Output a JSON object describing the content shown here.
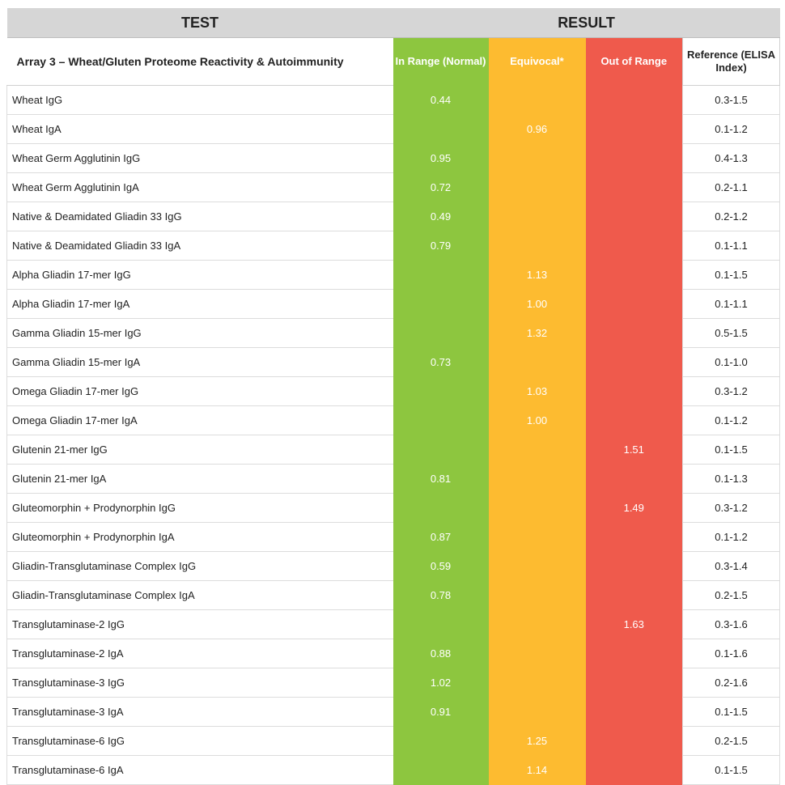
{
  "header": {
    "test": "TEST",
    "result": "RESULT"
  },
  "subheader": {
    "title": "Array 3 – Wheat/Gluten Proteome Reactivity & Autoimmunity",
    "in_range": "In Range (Normal)",
    "equivocal": "Equivocal*",
    "out_of_range": "Out of Range",
    "reference": "Reference (ELISA Index)"
  },
  "colors": {
    "in_range": "#8dc63f",
    "equivocal": "#fdbb30",
    "out_of_range": "#ef5a4c",
    "header_bg": "#d6d6d6"
  },
  "rows": [
    {
      "name": "Wheat IgG",
      "in": "0.44",
      "eq": "",
      "out": "",
      "ref": "0.3-1.5"
    },
    {
      "name": "Wheat IgA",
      "in": "",
      "eq": "0.96",
      "out": "",
      "ref": "0.1-1.2"
    },
    {
      "name": "Wheat Germ Agglutinin IgG",
      "in": "0.95",
      "eq": "",
      "out": "",
      "ref": "0.4-1.3"
    },
    {
      "name": "Wheat Germ Agglutinin IgA",
      "in": "0.72",
      "eq": "",
      "out": "",
      "ref": "0.2-1.1"
    },
    {
      "name": "Native & Deamidated Gliadin 33 IgG",
      "in": "0.49",
      "eq": "",
      "out": "",
      "ref": "0.2-1.2"
    },
    {
      "name": "Native & Deamidated Gliadin 33 IgA",
      "in": "0.79",
      "eq": "",
      "out": "",
      "ref": "0.1-1.1"
    },
    {
      "name": "Alpha Gliadin 17-mer IgG",
      "in": "",
      "eq": "1.13",
      "out": "",
      "ref": "0.1-1.5"
    },
    {
      "name": "Alpha Gliadin 17-mer IgA",
      "in": "",
      "eq": "1.00",
      "out": "",
      "ref": "0.1-1.1"
    },
    {
      "name": "Gamma Gliadin 15-mer IgG",
      "in": "",
      "eq": "1.32",
      "out": "",
      "ref": "0.5-1.5"
    },
    {
      "name": "Gamma Gliadin 15-mer IgA",
      "in": "0.73",
      "eq": "",
      "out": "",
      "ref": "0.1-1.0"
    },
    {
      "name": "Omega Gliadin 17-mer IgG",
      "in": "",
      "eq": "1.03",
      "out": "",
      "ref": "0.3-1.2"
    },
    {
      "name": "Omega Gliadin 17-mer IgA",
      "in": "",
      "eq": "1.00",
      "out": "",
      "ref": "0.1-1.2"
    },
    {
      "name": "Glutenin 21-mer IgG",
      "in": "",
      "eq": "",
      "out": "1.51",
      "ref": "0.1-1.5"
    },
    {
      "name": "Glutenin 21-mer IgA",
      "in": "0.81",
      "eq": "",
      "out": "",
      "ref": "0.1-1.3"
    },
    {
      "name": "Gluteomorphin + Prodynorphin IgG",
      "in": "",
      "eq": "",
      "out": "1.49",
      "ref": "0.3-1.2"
    },
    {
      "name": "Gluteomorphin + Prodynorphin IgA",
      "in": "0.87",
      "eq": "",
      "out": "",
      "ref": "0.1-1.2"
    },
    {
      "name": "Gliadin-Transglutaminase Complex IgG",
      "in": "0.59",
      "eq": "",
      "out": "",
      "ref": "0.3-1.4"
    },
    {
      "name": "Gliadin-Transglutaminase Complex IgA",
      "in": "0.78",
      "eq": "",
      "out": "",
      "ref": "0.2-1.5"
    },
    {
      "name": "Transglutaminase-2 IgG",
      "in": "",
      "eq": "",
      "out": "1.63",
      "ref": "0.3-1.6"
    },
    {
      "name": "Transglutaminase-2 IgA",
      "in": "0.88",
      "eq": "",
      "out": "",
      "ref": "0.1-1.6"
    },
    {
      "name": "Transglutaminase-3 IgG",
      "in": "1.02",
      "eq": "",
      "out": "",
      "ref": "0.2-1.6"
    },
    {
      "name": "Transglutaminase-3 IgA",
      "in": "0.91",
      "eq": "",
      "out": "",
      "ref": "0.1-1.5"
    },
    {
      "name": "Transglutaminase-6 IgG",
      "in": "",
      "eq": "1.25",
      "out": "",
      "ref": "0.2-1.5"
    },
    {
      "name": "Transglutaminase-6 IgA",
      "in": "",
      "eq": "1.14",
      "out": "",
      "ref": "0.1-1.5"
    }
  ]
}
